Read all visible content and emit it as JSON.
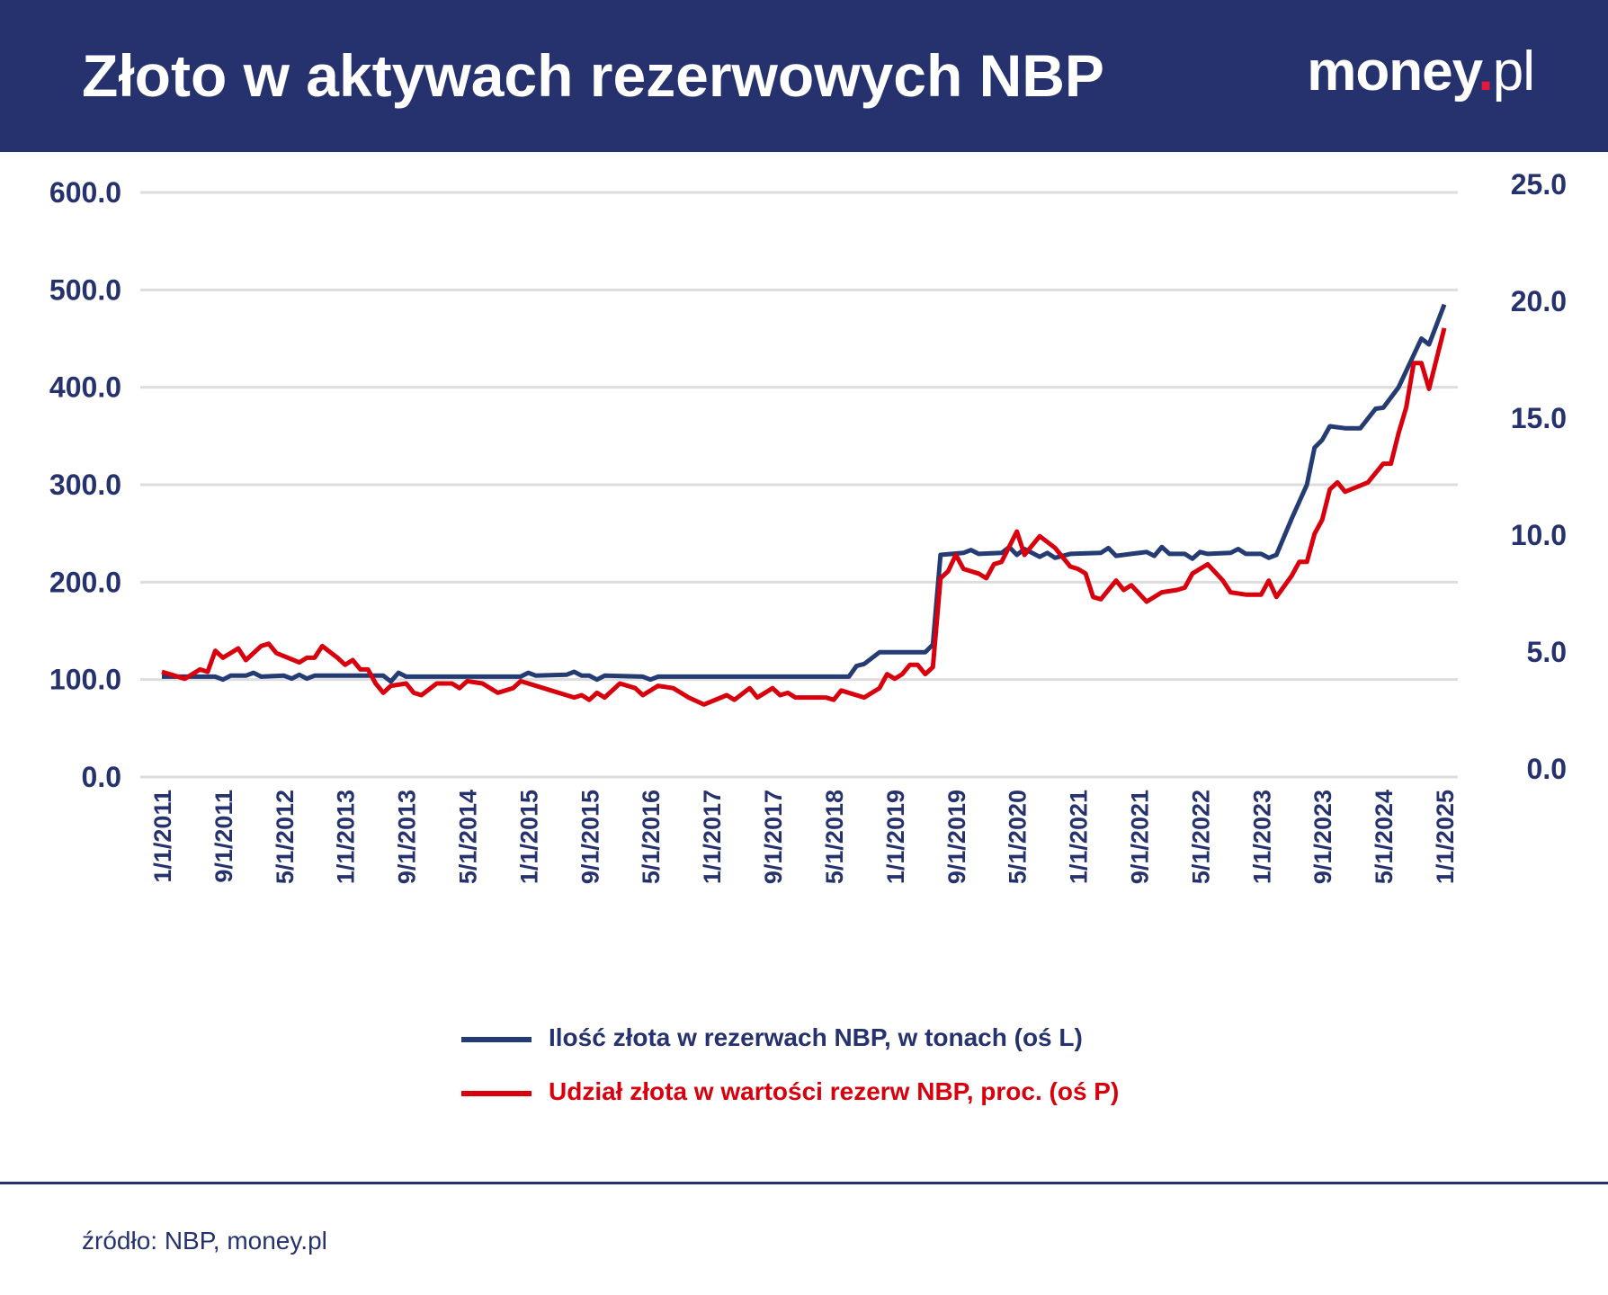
{
  "header": {
    "title": "Złoto w aktywach rezerwowych NBP",
    "logo": "money.pl"
  },
  "colors": {
    "header_bg": "#26326e",
    "blue_series": "#243c73",
    "red_series": "#d9000d",
    "text": "#26326e",
    "grid": "#dddddd",
    "logo_dot": "#e5173f"
  },
  "source": "źródło: NBP, money.pl",
  "chart_data": {
    "type": "line",
    "title": "Złoto w aktywach rezerwowych NBP",
    "x_ticks": [
      "1/1/2011",
      "9/1/2011",
      "5/1/2012",
      "1/1/2013",
      "9/1/2013",
      "5/1/2014",
      "1/1/2015",
      "9/1/2015",
      "5/1/2016",
      "1/1/2017",
      "9/1/2017",
      "5/1/2018",
      "1/1/2019",
      "9/1/2019",
      "5/1/2020",
      "1/1/2021",
      "9/1/2021",
      "5/1/2022",
      "1/1/2023",
      "9/1/2023",
      "5/1/2024",
      "1/1/2025"
    ],
    "xlim": [
      "2011-01",
      "2025-01"
    ],
    "y_left": {
      "ylim": [
        0,
        600
      ],
      "ticks": [
        "0.0",
        "100.0",
        "200.0",
        "300.0",
        "400.0",
        "500.0",
        "600.0"
      ]
    },
    "y_right": {
      "ylim": [
        0,
        25
      ],
      "ticks": [
        "0.0",
        "5.0",
        "10.0",
        "15.0",
        "20.0",
        "25.0"
      ]
    },
    "grid": true,
    "legend_position": "bottom",
    "series": [
      {
        "name": "Ilość złota w rezerwach NBP, w tonach (oś L)",
        "axis": "left",
        "color": "#243c73",
        "points": [
          [
            "2011-01",
            103
          ],
          [
            "2011-08",
            103
          ],
          [
            "2011-09",
            100
          ],
          [
            "2011-10",
            104
          ],
          [
            "2011-12",
            104
          ],
          [
            "2012-01",
            107
          ],
          [
            "2012-02",
            103
          ],
          [
            "2012-05",
            104
          ],
          [
            "2012-06",
            101
          ],
          [
            "2012-07",
            105
          ],
          [
            "2012-08",
            101
          ],
          [
            "2012-09",
            104
          ],
          [
            "2013-06",
            104
          ],
          [
            "2013-07",
            98
          ],
          [
            "2013-08",
            107
          ],
          [
            "2013-09",
            103
          ],
          [
            "2014-12",
            103
          ],
          [
            "2015-01",
            107
          ],
          [
            "2015-02",
            104
          ],
          [
            "2015-06",
            105
          ],
          [
            "2015-07",
            108
          ],
          [
            "2015-08",
            104
          ],
          [
            "2015-09",
            104
          ],
          [
            "2015-10",
            100
          ],
          [
            "2015-11",
            104
          ],
          [
            "2016-04",
            103
          ],
          [
            "2016-05",
            100
          ],
          [
            "2016-06",
            103
          ],
          [
            "2018-07",
            103
          ],
          [
            "2018-08",
            114
          ],
          [
            "2018-09",
            116
          ],
          [
            "2018-11",
            128
          ],
          [
            "2019-05",
            128
          ],
          [
            "2019-06",
            136
          ],
          [
            "2019-07",
            228
          ],
          [
            "2019-10",
            230
          ],
          [
            "2019-11",
            233
          ],
          [
            "2019-12",
            229
          ],
          [
            "2020-03",
            230
          ],
          [
            "2020-04",
            236
          ],
          [
            "2020-05",
            228
          ],
          [
            "2020-06",
            234
          ],
          [
            "2020-08",
            226
          ],
          [
            "2020-09",
            230
          ],
          [
            "2020-10",
            225
          ],
          [
            "2020-12",
            229
          ],
          [
            "2021-04",
            230
          ],
          [
            "2021-05",
            235
          ],
          [
            "2021-06",
            227
          ],
          [
            "2021-08",
            229
          ],
          [
            "2021-10",
            231
          ],
          [
            "2021-11",
            227
          ],
          [
            "2021-12",
            236
          ],
          [
            "2022-01",
            229
          ],
          [
            "2022-03",
            229
          ],
          [
            "2022-04",
            224
          ],
          [
            "2022-05",
            231
          ],
          [
            "2022-06",
            229
          ],
          [
            "2022-09",
            230
          ],
          [
            "2022-10",
            234
          ],
          [
            "2022-11",
            229
          ],
          [
            "2023-01",
            229
          ],
          [
            "2023-02",
            225
          ],
          [
            "2023-03",
            228
          ],
          [
            "2023-05",
            265
          ],
          [
            "2023-07",
            300
          ],
          [
            "2023-08",
            338
          ],
          [
            "2023-09",
            346
          ],
          [
            "2023-10",
            360
          ],
          [
            "2023-12",
            358
          ],
          [
            "2024-02",
            358
          ],
          [
            "2024-04",
            378
          ],
          [
            "2024-05",
            379
          ],
          [
            "2024-07",
            400
          ],
          [
            "2024-10",
            450
          ],
          [
            "2024-11",
            444
          ],
          [
            "2025-01",
            485
          ]
        ]
      },
      {
        "name": "Udział złota w wartości rezerw NBP, proc. (oś P)",
        "axis": "right",
        "color": "#d9000d",
        "points": [
          [
            "2011-01",
            4.5
          ],
          [
            "2011-03",
            4.3
          ],
          [
            "2011-04",
            4.2
          ],
          [
            "2011-06",
            4.6
          ],
          [
            "2011-07",
            4.5
          ],
          [
            "2011-08",
            5.4
          ],
          [
            "2011-09",
            5.1
          ],
          [
            "2011-11",
            5.5
          ],
          [
            "2011-12",
            5.0
          ],
          [
            "2012-02",
            5.6
          ],
          [
            "2012-03",
            5.7
          ],
          [
            "2012-04",
            5.3
          ],
          [
            "2012-07",
            4.9
          ],
          [
            "2012-08",
            5.1
          ],
          [
            "2012-09",
            5.1
          ],
          [
            "2012-10",
            5.6
          ],
          [
            "2012-12",
            5.1
          ],
          [
            "2013-01",
            4.8
          ],
          [
            "2013-02",
            5.0
          ],
          [
            "2013-03",
            4.6
          ],
          [
            "2013-04",
            4.6
          ],
          [
            "2013-05",
            4.0
          ],
          [
            "2013-06",
            3.6
          ],
          [
            "2013-07",
            3.9
          ],
          [
            "2013-09",
            4.0
          ],
          [
            "2013-10",
            3.6
          ],
          [
            "2013-11",
            3.5
          ],
          [
            "2014-01",
            4.0
          ],
          [
            "2014-03",
            4.0
          ],
          [
            "2014-04",
            3.8
          ],
          [
            "2014-05",
            4.1
          ],
          [
            "2014-07",
            4.0
          ],
          [
            "2014-09",
            3.6
          ],
          [
            "2014-11",
            3.8
          ],
          [
            "2014-12",
            4.1
          ],
          [
            "2015-03",
            3.8
          ],
          [
            "2015-06",
            3.5
          ],
          [
            "2015-07",
            3.4
          ],
          [
            "2015-08",
            3.5
          ],
          [
            "2015-09",
            3.3
          ],
          [
            "2015-10",
            3.6
          ],
          [
            "2015-11",
            3.4
          ],
          [
            "2016-01",
            4.0
          ],
          [
            "2016-03",
            3.8
          ],
          [
            "2016-04",
            3.5
          ],
          [
            "2016-06",
            3.9
          ],
          [
            "2016-08",
            3.8
          ],
          [
            "2016-10",
            3.4
          ],
          [
            "2016-12",
            3.1
          ],
          [
            "2017-03",
            3.5
          ],
          [
            "2017-04",
            3.3
          ],
          [
            "2017-06",
            3.8
          ],
          [
            "2017-07",
            3.4
          ],
          [
            "2017-09",
            3.8
          ],
          [
            "2017-10",
            3.5
          ],
          [
            "2017-11",
            3.6
          ],
          [
            "2017-12",
            3.4
          ],
          [
            "2018-04",
            3.4
          ],
          [
            "2018-05",
            3.3
          ],
          [
            "2018-06",
            3.7
          ],
          [
            "2018-09",
            3.4
          ],
          [
            "2018-11",
            3.8
          ],
          [
            "2018-12",
            4.4
          ],
          [
            "2019-01",
            4.2
          ],
          [
            "2019-02",
            4.4
          ],
          [
            "2019-03",
            4.8
          ],
          [
            "2019-04",
            4.8
          ],
          [
            "2019-05",
            4.4
          ],
          [
            "2019-06",
            4.7
          ],
          [
            "2019-07",
            8.5
          ],
          [
            "2019-08",
            8.8
          ],
          [
            "2019-09",
            9.5
          ],
          [
            "2019-10",
            8.9
          ],
          [
            "2019-12",
            8.7
          ],
          [
            "2020-01",
            8.5
          ],
          [
            "2020-02",
            9.1
          ],
          [
            "2020-03",
            9.2
          ],
          [
            "2020-05",
            10.5
          ],
          [
            "2020-06",
            9.5
          ],
          [
            "2020-08",
            10.3
          ],
          [
            "2020-10",
            9.8
          ],
          [
            "2020-12",
            9.0
          ],
          [
            "2021-01",
            8.9
          ],
          [
            "2021-02",
            8.7
          ],
          [
            "2021-03",
            7.7
          ],
          [
            "2021-04",
            7.6
          ],
          [
            "2021-06",
            8.4
          ],
          [
            "2021-07",
            8.0
          ],
          [
            "2021-08",
            8.2
          ],
          [
            "2021-10",
            7.5
          ],
          [
            "2021-12",
            7.9
          ],
          [
            "2022-02",
            8.0
          ],
          [
            "2022-03",
            8.1
          ],
          [
            "2022-04",
            8.7
          ],
          [
            "2022-06",
            9.1
          ],
          [
            "2022-08",
            8.4
          ],
          [
            "2022-09",
            7.9
          ],
          [
            "2022-11",
            7.8
          ],
          [
            "2023-01",
            7.8
          ],
          [
            "2023-02",
            8.4
          ],
          [
            "2023-03",
            7.7
          ],
          [
            "2023-05",
            8.6
          ],
          [
            "2023-06",
            9.2
          ],
          [
            "2023-07",
            9.2
          ],
          [
            "2023-08",
            10.4
          ],
          [
            "2023-09",
            11.0
          ],
          [
            "2023-10",
            12.3
          ],
          [
            "2023-11",
            12.6
          ],
          [
            "2023-12",
            12.2
          ],
          [
            "2024-03",
            12.6
          ],
          [
            "2024-05",
            13.4
          ],
          [
            "2024-06",
            13.4
          ],
          [
            "2024-07",
            14.7
          ],
          [
            "2024-08",
            15.8
          ],
          [
            "2024-09",
            17.7
          ],
          [
            "2024-10",
            17.7
          ],
          [
            "2024-11",
            16.6
          ],
          [
            "2025-01",
            19.2
          ]
        ]
      }
    ]
  }
}
